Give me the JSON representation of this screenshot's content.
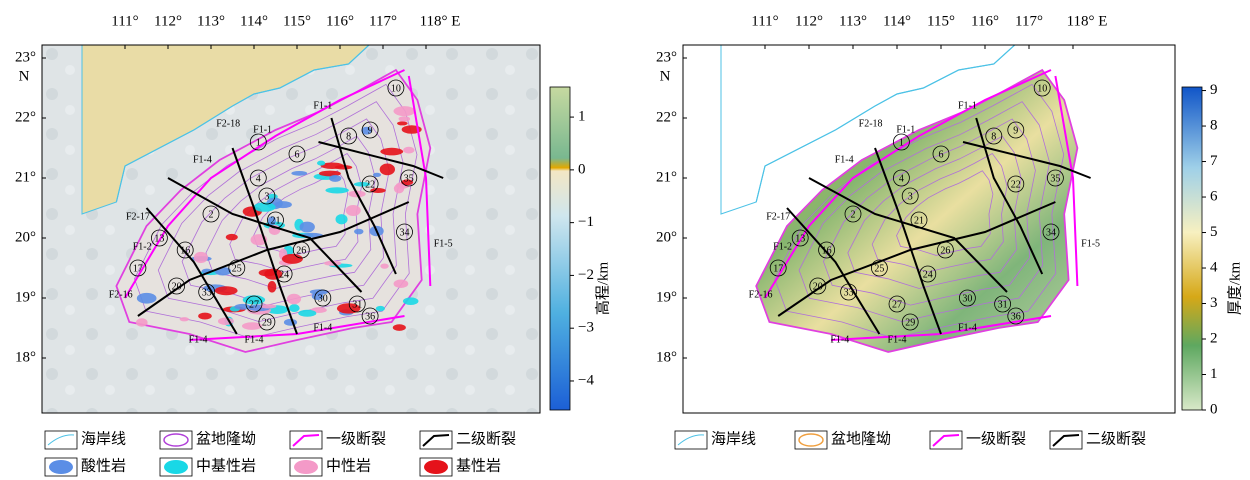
{
  "panels": [
    {
      "xticks": [
        {
          "value": 111,
          "label": "111°"
        },
        {
          "value": 112,
          "label": "112°"
        },
        {
          "value": 113,
          "label": "113°"
        },
        {
          "value": 114,
          "label": "114°"
        },
        {
          "value": 115,
          "label": "115°"
        },
        {
          "value": 116,
          "label": "116°"
        },
        {
          "value": 117,
          "label": "117°"
        },
        {
          "value": 118,
          "label": "118° E"
        }
      ],
      "yticks": [
        {
          "value": 23,
          "label": "23°"
        },
        {
          "value": 22,
          "label": "22°"
        },
        {
          "value": 21,
          "label": "21°"
        },
        {
          "value": 20,
          "label": "20°"
        },
        {
          "value": 19,
          "label": "19°"
        },
        {
          "value": 18,
          "label": "18°"
        }
      ],
      "y_unit": "N",
      "colorbar": {
        "label": "高程/km",
        "lim": [
          -4.55,
          1.57
        ],
        "ticks": [
          {
            "value": -4,
            "label": "−4"
          },
          {
            "value": -3,
            "label": "−3"
          },
          {
            "value": -2,
            "label": "−2"
          },
          {
            "value": -1,
            "label": "−1"
          },
          0,
          1
        ]
      },
      "legend": [
        "海岸线",
        "盆地隆坳",
        "一级断裂",
        "二级断裂",
        "酸性岩",
        "中基性岩",
        "中性岩",
        "基性岩"
      ],
      "fault_labels": [
        "F1-1",
        "F1-1",
        "F2-18",
        "F1-4",
        "F1-4",
        "F1-4",
        "F1-5",
        "F2-16",
        "F2-17",
        "F1-2",
        "F1-4"
      ],
      "unit_labels": [
        "1",
        "2",
        "3",
        "4",
        "6",
        "10",
        "20",
        "21",
        "22",
        "26",
        "27",
        "29",
        "30",
        "31",
        "34",
        "36",
        "13",
        "17",
        "16",
        "8",
        "9",
        "25",
        "24",
        "33",
        "35"
      ]
    },
    {
      "xticks": [
        {
          "value": 111,
          "label": "111°"
        },
        {
          "value": 112,
          "label": "112°"
        },
        {
          "value": 113,
          "label": "113°"
        },
        {
          "value": 114,
          "label": "114°"
        },
        {
          "value": 115,
          "label": "115°"
        },
        {
          "value": 116,
          "label": "116°"
        },
        {
          "value": 117,
          "label": "117°"
        },
        {
          "value": 118,
          "label": "118° E"
        }
      ],
      "yticks": [
        {
          "value": 23,
          "label": "23°"
        },
        {
          "value": 22,
          "label": "22°"
        },
        {
          "value": 21,
          "label": "21°"
        },
        {
          "value": 20,
          "label": "20°"
        },
        {
          "value": 19,
          "label": "19°"
        },
        {
          "value": 18,
          "label": "18°"
        }
      ],
      "y_unit": "N",
      "colorbar": {
        "label": "厚度/km",
        "lim": [
          0,
          9.1
        ],
        "ticks": [
          0,
          1,
          2,
          3,
          4,
          5,
          6,
          7,
          8,
          9
        ]
      },
      "legend": [
        "海岸线",
        "盆地隆坳",
        "一级断裂",
        "二级断裂"
      ],
      "fault_labels": [
        "F1-1",
        "F1-1",
        "F2-18",
        "F1-4",
        "F1-4",
        "F1-4",
        "F1-5",
        "F2-16",
        "F2-17",
        "F1-2",
        "F1-4"
      ],
      "unit_labels": [
        "1",
        "2",
        "3",
        "4",
        "6",
        "10",
        "20",
        "21",
        "22",
        "26",
        "27",
        "29",
        "30",
        "31",
        "34",
        "36",
        "13",
        "17",
        "16",
        "8",
        "9",
        "25",
        "24",
        "33",
        "35"
      ]
    }
  ]
}
